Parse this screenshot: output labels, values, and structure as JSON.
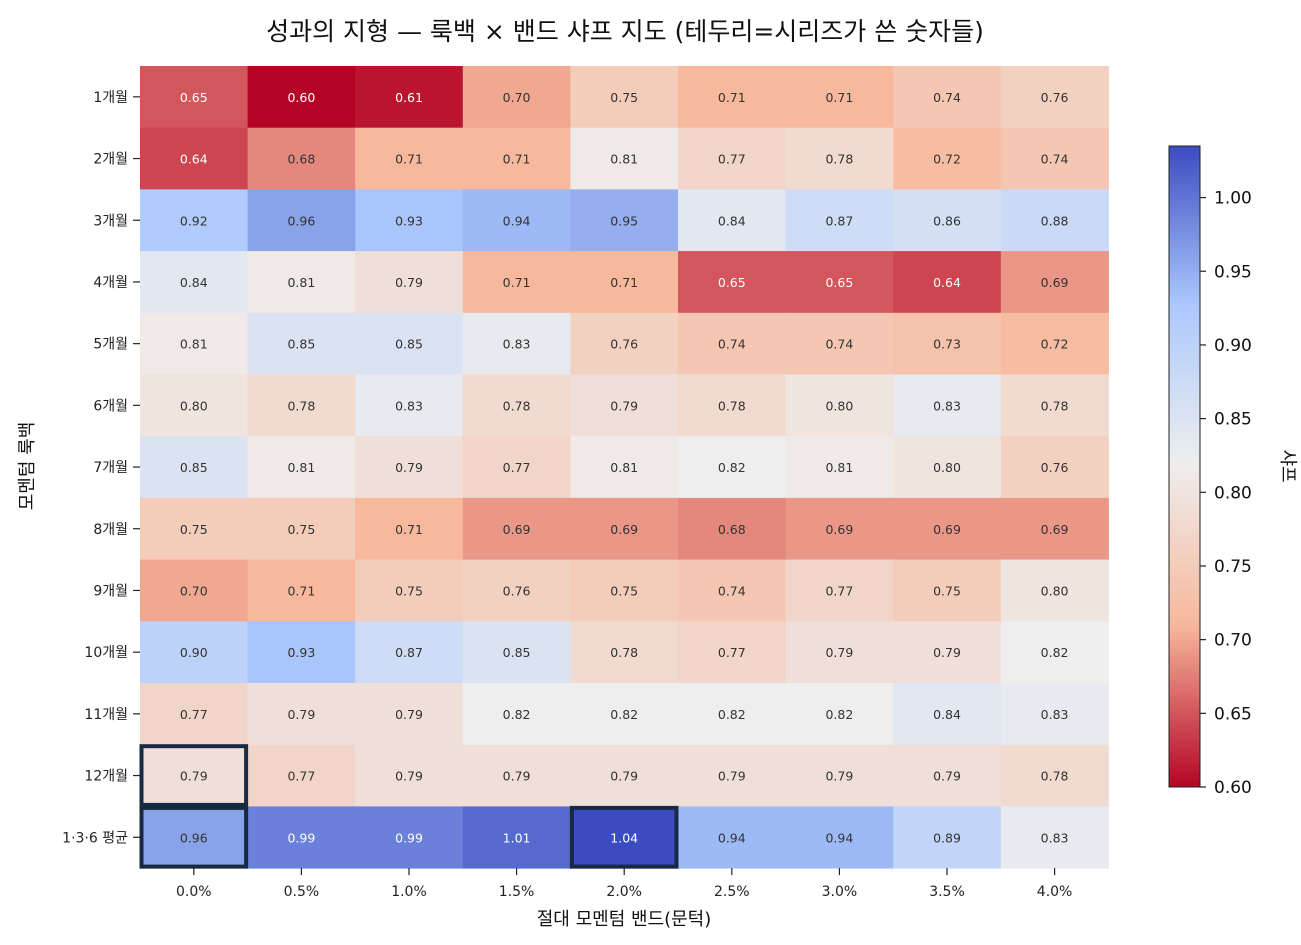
{
  "chart_data": {
    "type": "heatmap",
    "title": "성과의 지형 — 룩백 × 밴드 샤프 지도 (테두리=시리즈가 쓴 숫자들)",
    "xlabel": "절대 모멘텀 밴드(문턱)",
    "ylabel": "모멘텀 룩백",
    "x_categories": [
      "0.0%",
      "0.5%",
      "1.0%",
      "1.5%",
      "2.0%",
      "2.5%",
      "3.0%",
      "3.5%",
      "4.0%"
    ],
    "y_categories": [
      "1개월",
      "2개월",
      "3개월",
      "4개월",
      "5개월",
      "6개월",
      "7개월",
      "8개월",
      "9개월",
      "10개월",
      "11개월",
      "12개월",
      "1·3·6 평균"
    ],
    "values": [
      [
        0.65,
        0.6,
        0.61,
        0.7,
        0.75,
        0.71,
        0.71,
        0.74,
        0.76
      ],
      [
        0.64,
        0.68,
        0.71,
        0.71,
        0.81,
        0.77,
        0.78,
        0.72,
        0.74
      ],
      [
        0.92,
        0.96,
        0.93,
        0.94,
        0.95,
        0.84,
        0.87,
        0.86,
        0.88
      ],
      [
        0.84,
        0.81,
        0.79,
        0.71,
        0.71,
        0.65,
        0.65,
        0.64,
        0.69
      ],
      [
        0.81,
        0.85,
        0.85,
        0.83,
        0.76,
        0.74,
        0.74,
        0.73,
        0.72
      ],
      [
        0.8,
        0.78,
        0.83,
        0.78,
        0.79,
        0.78,
        0.8,
        0.83,
        0.78
      ],
      [
        0.85,
        0.81,
        0.79,
        0.77,
        0.81,
        0.82,
        0.81,
        0.8,
        0.76
      ],
      [
        0.75,
        0.75,
        0.71,
        0.69,
        0.69,
        0.68,
        0.69,
        0.69,
        0.69
      ],
      [
        0.7,
        0.71,
        0.75,
        0.76,
        0.75,
        0.74,
        0.77,
        0.75,
        0.8
      ],
      [
        0.9,
        0.93,
        0.87,
        0.85,
        0.78,
        0.77,
        0.79,
        0.79,
        0.82
      ],
      [
        0.77,
        0.79,
        0.79,
        0.82,
        0.82,
        0.82,
        0.82,
        0.84,
        0.83
      ],
      [
        0.79,
        0.77,
        0.79,
        0.79,
        0.79,
        0.79,
        0.79,
        0.79,
        0.78
      ],
      [
        0.96,
        0.99,
        0.99,
        1.01,
        1.04,
        0.94,
        0.94,
        0.89,
        0.83
      ]
    ],
    "highlighted_cells": [
      {
        "row": "12개월",
        "col": "0.0%"
      },
      {
        "row": "1·3·6 평균",
        "col": "0.0%"
      },
      {
        "row": "1·3·6 평균",
        "col": "2.0%"
      }
    ],
    "colorbar": {
      "label": "샤프",
      "range": [
        0.6,
        1.035
      ],
      "ticks": [
        0.6,
        0.65,
        0.7,
        0.75,
        0.8,
        0.85,
        0.9,
        0.95,
        1.0
      ],
      "tick_labels": [
        "0.60",
        "0.65",
        "0.70",
        "0.75",
        "0.80",
        "0.85",
        "0.90",
        "0.95",
        "1.00"
      ],
      "center": 0.82,
      "colormap": [
        "#b40426",
        "#f7b89c",
        "#eeeeee",
        "#abc8fd",
        "#3b4cc0"
      ]
    },
    "highlight_color": "#1a2942"
  }
}
